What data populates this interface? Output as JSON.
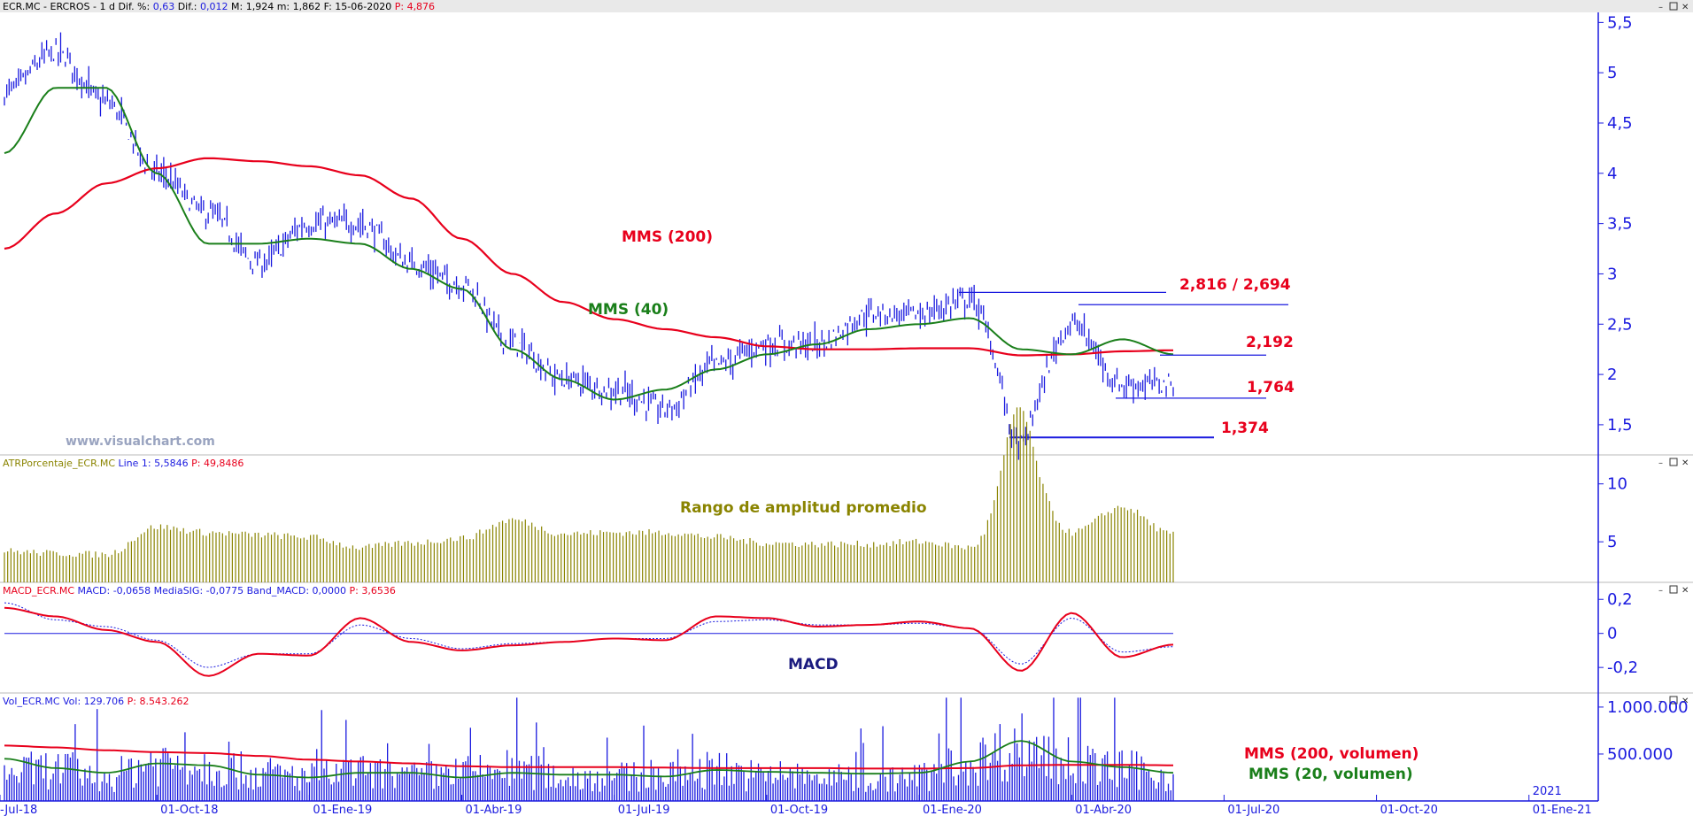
{
  "panels": {
    "price": {
      "header": {
        "symbol": "ECR.MC - ERCROS - ",
        "period": " 1 d",
        "dif_pct_label": " Dif. %:",
        "dif_pct": " 0,63",
        "dif_label": "  Dif.:",
        "dif": " 0,012",
        "max": "  M: 1,924",
        "min": "  m: 1,862",
        "date": "  F: 15-06-2020",
        "p": "  P: 4,876"
      },
      "y_ticks": [
        "1,5",
        "2",
        "2,5",
        "3",
        "3,5",
        "4",
        "4,5",
        "5",
        "5,5"
      ],
      "watermark": "www.visualchart.com",
      "labels": {
        "mms200": "MMS (200)",
        "mms40": "MMS (40)",
        "level_high": "2,816 / 2,694",
        "level_mid": "2,192",
        "level_low": "1,764",
        "level_min": "1,374"
      }
    },
    "atr": {
      "header": {
        "name": "ATRPorcentaje_ECR.MC",
        "line": "  Line 1: 5,5846",
        "p": "  P: 49,8486"
      },
      "y_ticks": [
        "5",
        "10"
      ],
      "label": "Rango de amplitud promedio"
    },
    "macd": {
      "header": {
        "name": "MACD_ECR.MC",
        "values": "  MACD: -0,0658  MediaSIG: -0,0775  Band_MACD: 0,0000",
        "p": "  P: 3,6536"
      },
      "y_ticks": [
        "-0,2",
        "0",
        "0,2"
      ],
      "label": "MACD"
    },
    "volume": {
      "header": {
        "name": "Vol_ECR.MC",
        "values": "  Vol: 129.706",
        "p": "  P: 8.543.262"
      },
      "y_ticks": [
        "500.000",
        "1.000.000"
      ],
      "labels": {
        "mms200v": "MMS (200, volumen)",
        "mms20v": "MMS (20, volumen)"
      }
    }
  },
  "x_ticks": [
    "-Jul-18",
    "01-Oct-18",
    "01-Ene-19",
    "01-Abr-19",
    "01-Jul-19",
    "01-Oct-19",
    "01-Ene-20",
    "01-Abr-20",
    "01-Jul-20",
    "01-Oct-20",
    "01-Ene-21"
  ],
  "x_year_label": "2021",
  "colors": {
    "price_bars": "#1a1adf",
    "mms200": "#e8001c",
    "mms40": "#1a7f1a",
    "atr_bars": "#8a8400",
    "macd": "#e8001c",
    "signal": "#1a1adf",
    "axis": "#1a1adf",
    "header_bg": "#e9e9e9"
  },
  "chart_data": [
    {
      "type": "line",
      "title": "ECR.MC - ERCROS",
      "x": [
        "2018-07",
        "2018-08",
        "2018-09",
        "2018-10",
        "2018-11",
        "2018-12",
        "2019-01",
        "2019-02",
        "2019-03",
        "2019-04",
        "2019-05",
        "2019-06",
        "2019-07",
        "2019-08",
        "2019-09",
        "2019-10",
        "2019-11",
        "2019-12",
        "2020-01",
        "2020-02",
        "2020-03",
        "2020-04",
        "2020-05",
        "2020-06"
      ],
      "series": [
        {
          "values": [
            4.8,
            5.2,
            4.7,
            4.0,
            3.6,
            3.1,
            3.5,
            3.5,
            3.1,
            2.9,
            2.3,
            1.95,
            1.85,
            1.65,
            2.1,
            2.3,
            2.3,
            2.6,
            2.6,
            2.75,
            1.5,
            2.5,
            1.9,
            1.9
          ]
        },
        {
          "name": "MMS (200)",
          "values": [
            3.25,
            3.6,
            3.9,
            4.05,
            4.15,
            4.12,
            4.07,
            3.98,
            3.75,
            3.35,
            3.0,
            2.72,
            2.55,
            2.45,
            2.37,
            2.28,
            2.25,
            2.25,
            2.26,
            2.26,
            2.19,
            2.2,
            2.23,
            2.24
          ]
        },
        {
          "name": "MMS (40)",
          "values": [
            4.2,
            4.85,
            4.85,
            4.0,
            3.3,
            3.3,
            3.35,
            3.3,
            3.05,
            2.85,
            2.25,
            1.95,
            1.75,
            1.85,
            2.05,
            2.2,
            2.3,
            2.45,
            2.5,
            2.56,
            2.25,
            2.2,
            2.35,
            2.2
          ]
        }
      ],
      "ylim": [
        1.2,
        5.6
      ],
      "levels": [
        2.816,
        2.694,
        2.192,
        1.764,
        1.374
      ]
    },
    {
      "type": "bar",
      "title": "ATRPorcentaje_ECR.MC",
      "x": [
        "2018-07",
        "2018-08",
        "2018-09",
        "2018-10",
        "2018-11",
        "2018-12",
        "2019-01",
        "2019-02",
        "2019-03",
        "2019-04",
        "2019-05",
        "2019-06",
        "2019-07",
        "2019-08",
        "2019-09",
        "2019-10",
        "2019-11",
        "2019-12",
        "2020-01",
        "2020-02",
        "2020-03",
        "2020-04",
        "2020-05",
        "2020-06"
      ],
      "values": [
        4.2,
        4.0,
        3.9,
        6.3,
        5.8,
        5.6,
        5.4,
        4.5,
        4.9,
        5.3,
        6.9,
        5.7,
        5.8,
        5.8,
        5.4,
        4.9,
        4.8,
        4.8,
        5.0,
        4.5,
        11.2,
        5.8,
        8.0,
        5.6
      ],
      "ylim": [
        1.5,
        12.5
      ]
    },
    {
      "type": "line",
      "title": "MACD_ECR.MC",
      "x": [
        "2018-07",
        "2018-08",
        "2018-09",
        "2018-10",
        "2018-11",
        "2018-12",
        "2019-01",
        "2019-02",
        "2019-03",
        "2019-04",
        "2019-05",
        "2019-06",
        "2019-07",
        "2019-08",
        "2019-09",
        "2019-10",
        "2019-11",
        "2019-12",
        "2020-01",
        "2020-02",
        "2020-03",
        "2020-04",
        "2020-05",
        "2020-06"
      ],
      "series": [
        {
          "name": "MACD",
          "values": [
            0.15,
            0.1,
            0.02,
            -0.05,
            -0.25,
            -0.12,
            -0.13,
            0.09,
            -0.05,
            -0.1,
            -0.07,
            -0.05,
            -0.03,
            -0.04,
            0.1,
            0.09,
            0.04,
            0.05,
            0.07,
            0.03,
            -0.22,
            0.12,
            -0.14,
            -0.066
          ]
        },
        {
          "name": "MediaSIG",
          "values": [
            0.18,
            0.08,
            0.04,
            -0.04,
            -0.2,
            -0.12,
            -0.12,
            0.05,
            -0.03,
            -0.09,
            -0.06,
            -0.05,
            -0.03,
            -0.03,
            0.07,
            0.08,
            0.05,
            0.05,
            0.06,
            0.03,
            -0.18,
            0.09,
            -0.11,
            -0.078
          ]
        }
      ],
      "ylim": [
        -0.35,
        0.3
      ]
    },
    {
      "type": "bar",
      "title": "Vol_ECR.MC",
      "x": [
        "2018-07",
        "2018-08",
        "2018-09",
        "2018-10",
        "2018-11",
        "2018-12",
        "2019-01",
        "2019-02",
        "2019-03",
        "2019-04",
        "2019-05",
        "2019-06",
        "2019-07",
        "2019-08",
        "2019-09",
        "2019-10",
        "2019-11",
        "2019-12",
        "2020-01",
        "2020-02",
        "2020-03",
        "2020-04",
        "2020-05",
        "2020-06"
      ],
      "series": [
        {
          "name": "Vol",
          "values": [
            350000,
            400000,
            300000,
            500000,
            450000,
            350000,
            300000,
            350000,
            300000,
            350000,
            400000,
            300000,
            300000,
            300000,
            400000,
            300000,
            300000,
            250000,
            300000,
            500000,
            700000,
            450000,
            400000,
            300000
          ]
        },
        {
          "name": "MMS (200, volumen)",
          "values": [
            590000,
            570000,
            540000,
            520000,
            510000,
            480000,
            440000,
            420000,
            400000,
            370000,
            360000,
            360000,
            360000,
            355000,
            350000,
            350000,
            350000,
            345000,
            345000,
            350000,
            380000,
            385000,
            385000,
            380000
          ]
        },
        {
          "name": "MMS (20, volumen)",
          "values": [
            450000,
            350000,
            300000,
            400000,
            380000,
            280000,
            250000,
            300000,
            300000,
            250000,
            300000,
            280000,
            280000,
            260000,
            330000,
            310000,
            300000,
            290000,
            300000,
            420000,
            640000,
            420000,
            360000,
            300000
          ]
        }
      ],
      "ylim": [
        0,
        1150000
      ]
    }
  ]
}
